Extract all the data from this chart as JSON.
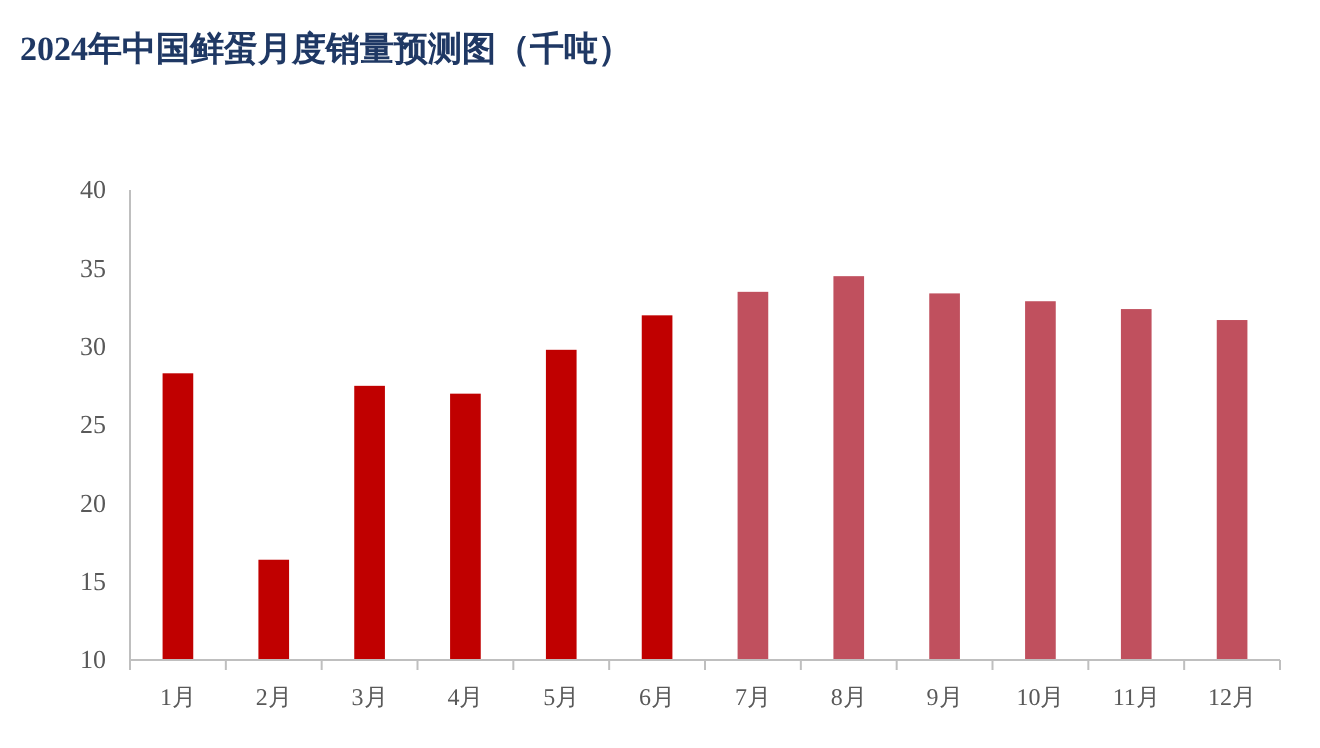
{
  "chart_data": {
    "type": "bar",
    "title": "2024年中国鲜蛋月度销量预测图（千吨）",
    "categories": [
      "1月",
      "2月",
      "3月",
      "4月",
      "5月",
      "6月",
      "7月",
      "8月",
      "9月",
      "10月",
      "11月",
      "12月"
    ],
    "values": [
      28.3,
      16.4,
      27.5,
      27.0,
      29.8,
      32.0,
      33.5,
      34.5,
      33.4,
      32.9,
      32.4,
      31.7
    ],
    "colors": [
      "#c00000",
      "#c00000",
      "#c00000",
      "#c00000",
      "#c00000",
      "#c00000",
      "#c0505e",
      "#c0505e",
      "#c0505e",
      "#c0505e",
      "#c0505e",
      "#c0505e"
    ],
    "ylim": [
      10,
      40
    ],
    "yticks": [
      10,
      15,
      20,
      25,
      30,
      35,
      40
    ],
    "grid": false
  }
}
